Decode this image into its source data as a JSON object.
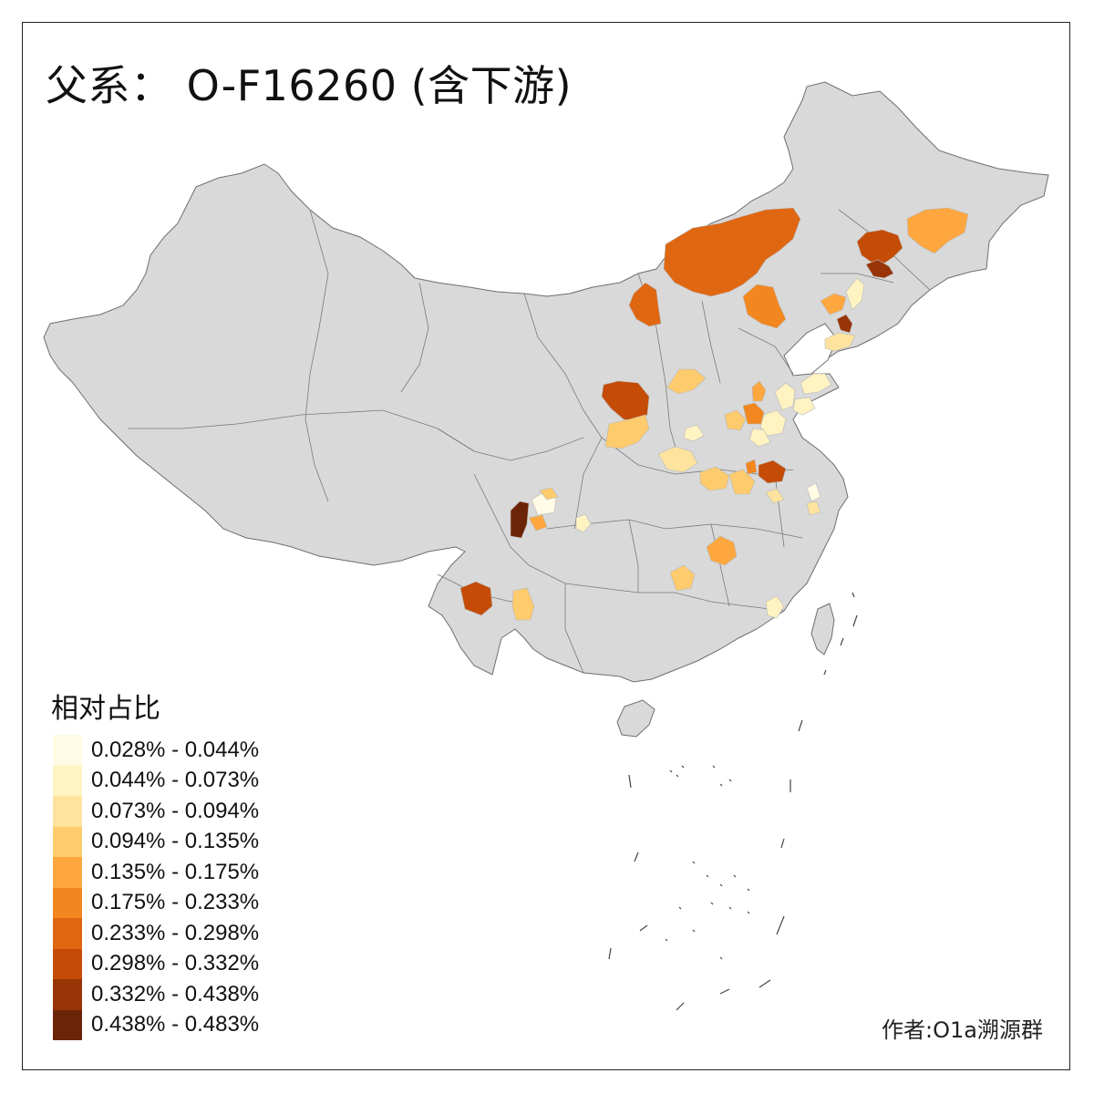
{
  "title": "父系： O-F16260 (含下游)",
  "legend": {
    "title": "相对占比",
    "items": [
      {
        "label": "0.028% - 0.044%",
        "color": "#fffbe4"
      },
      {
        "label": "0.044% - 0.073%",
        "color": "#fff3c2"
      },
      {
        "label": "0.073% - 0.094%",
        "color": "#fee39e"
      },
      {
        "label": "0.094% - 0.135%",
        "color": "#fecb6d"
      },
      {
        "label": "0.135% - 0.175%",
        "color": "#fda73e"
      },
      {
        "label": "0.175% - 0.233%",
        "color": "#f3871f"
      },
      {
        "label": "0.233% - 0.298%",
        "color": "#e06712"
      },
      {
        "label": "0.298% - 0.332%",
        "color": "#c44c06"
      },
      {
        "label": "0.332% - 0.438%",
        "color": "#983405"
      },
      {
        "label": "0.438% - 0.483%",
        "color": "#6b2506"
      }
    ]
  },
  "credit": "作者:O1a溯源群",
  "colors": {
    "land": "#d9d9d9",
    "border": "#6e6e6e",
    "frame": "#222222"
  }
}
